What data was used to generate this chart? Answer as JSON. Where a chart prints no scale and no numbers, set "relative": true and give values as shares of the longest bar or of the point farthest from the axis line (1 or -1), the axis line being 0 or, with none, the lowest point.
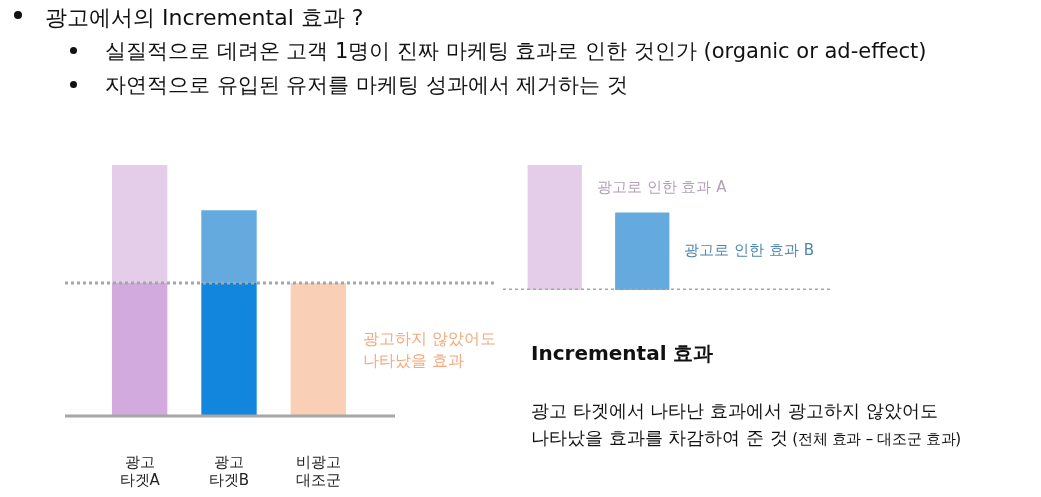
{
  "chart_data": [
    {
      "type": "other",
      "title": "광고에서의 Incremental 효과 ?",
      "annotations": [
        "실질적으로 데려온 고객 1명이 진짜 마케팅 효과로 인한 것인가 (organic or ad-effect)",
        "자연적으로 유입된 유저를 마케팅 성과에서 제거하는 것"
      ]
    },
    {
      "type": "bar",
      "relative": true,
      "stacked": true,
      "categories": [
        "광고\n타겟A",
        "광고\n타겟B",
        "비광고\n대조군"
      ],
      "series": [
        {
          "colors": [
            "#d2aadd",
            "#1286dc",
            "#f9d0b5"
          ],
          "values": [
            0.53,
            0.53,
            0.53
          ]
        },
        {
          "colors": [
            "#e4cde9",
            "#65aade",
            "#f9d0b5"
          ],
          "values": [
            0.47,
            0.29,
            null
          ]
        }
      ],
      "ref_lines": [
        {
          "axis": "y",
          "value": 0.53,
          "color": "#a6a6a6",
          "line_style": "dotted"
        }
      ],
      "annotations": [
        "광고하지 않았어도 나타났을 효과"
      ]
    },
    {
      "type": "bar",
      "relative": true,
      "stacked": true,
      "tick_labels": false,
      "categories": [
        null,
        null
      ],
      "series": [
        {
          "name": "광고로 인한 효과 A",
          "color": "#e4cde9",
          "values": [
            1,
            null
          ]
        },
        {
          "name": "광고로 인한 효과 B",
          "color": "#65aade",
          "values": [
            null,
            0.62
          ]
        }
      ]
    },
    {
      "type": "other",
      "title": "Incremental 효과",
      "annotations": [
        "광고 타겟에서 나타난 효과에서 광고하지 않았어도 나타났을 효과를 차감하여 준 것",
        "(전체 효과 – 대조군 효과)"
      ]
    }
  ]
}
